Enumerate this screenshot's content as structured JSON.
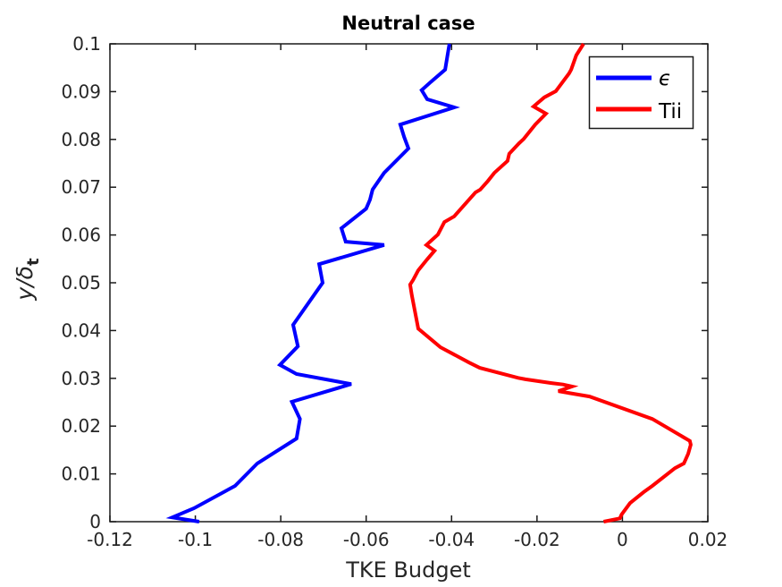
{
  "chart_data": {
    "type": "line",
    "title": "Neutral case",
    "xlabel": "TKE Budget",
    "ylabel": "y/δ_t",
    "xlim": [
      -0.12,
      0.02
    ],
    "ylim": [
      0,
      0.1
    ],
    "xticks": [
      -0.12,
      -0.1,
      -0.08,
      -0.06,
      -0.04,
      -0.02,
      0,
      0.02
    ],
    "xtick_labels": [
      "-0.12",
      "-0.1",
      "-0.08",
      "-0.06",
      "-0.04",
      "-0.02",
      "0",
      "0.02"
    ],
    "yticks": [
      0,
      0.01,
      0.02,
      0.03,
      0.04,
      0.05,
      0.06,
      0.07,
      0.08,
      0.09,
      0.1
    ],
    "ytick_labels": [
      "0",
      "0.01",
      "0.02",
      "0.03",
      "0.04",
      "0.05",
      "0.06",
      "0.07",
      "0.08",
      "0.09",
      "0.1"
    ],
    "grid": false,
    "legend_position": "inside-top-right",
    "series": [
      {
        "id": "epsilon",
        "name": "ϵ",
        "color": "#0000ff",
        "points": [
          [
            -0.0405,
            0.1
          ],
          [
            -0.0409,
            0.0979
          ],
          [
            -0.0415,
            0.0946
          ],
          [
            -0.0449,
            0.092
          ],
          [
            -0.047,
            0.0903
          ],
          [
            -0.0457,
            0.0884
          ],
          [
            -0.0394,
            0.0867
          ],
          [
            -0.052,
            0.0831
          ],
          [
            -0.0511,
            0.0805
          ],
          [
            -0.0501,
            0.0781
          ],
          [
            -0.0558,
            0.073
          ],
          [
            -0.0585,
            0.0695
          ],
          [
            -0.0591,
            0.0674
          ],
          [
            -0.06,
            0.0655
          ],
          [
            -0.0658,
            0.0614
          ],
          [
            -0.0648,
            0.0586
          ],
          [
            -0.0558,
            0.0579
          ],
          [
            -0.071,
            0.0539
          ],
          [
            -0.0702,
            0.05
          ],
          [
            -0.0771,
            0.0412
          ],
          [
            -0.076,
            0.0367
          ],
          [
            -0.0802,
            0.0328
          ],
          [
            -0.0763,
            0.0309
          ],
          [
            -0.0635,
            0.0288
          ],
          [
            -0.0774,
            0.0251
          ],
          [
            -0.0755,
            0.0215
          ],
          [
            -0.0763,
            0.0174
          ],
          [
            -0.0855,
            0.0122
          ],
          [
            -0.0907,
            0.0075
          ],
          [
            -0.1003,
            0.0028
          ],
          [
            -0.1054,
            0.0009
          ],
          [
            -0.0991,
            0.0
          ]
        ]
      },
      {
        "id": "tii",
        "name": "Tii",
        "color": "#ff0000",
        "points": [
          [
            -0.0091,
            0.1
          ],
          [
            -0.0108,
            0.0976
          ],
          [
            -0.012,
            0.0946
          ],
          [
            -0.0125,
            0.0938
          ],
          [
            -0.0156,
            0.0901
          ],
          [
            -0.0183,
            0.0888
          ],
          [
            -0.0208,
            0.0869
          ],
          [
            -0.0179,
            0.0854
          ],
          [
            -0.0204,
            0.0831
          ],
          [
            -0.0231,
            0.0801
          ],
          [
            -0.0242,
            0.0792
          ],
          [
            -0.0265,
            0.077
          ],
          [
            -0.0269,
            0.0755
          ],
          [
            -0.03,
            0.073
          ],
          [
            -0.0315,
            0.0713
          ],
          [
            -0.0333,
            0.0695
          ],
          [
            -0.0344,
            0.0689
          ],
          [
            -0.0394,
            0.0639
          ],
          [
            -0.0417,
            0.0627
          ],
          [
            -0.0432,
            0.0601
          ],
          [
            -0.0459,
            0.0579
          ],
          [
            -0.044,
            0.0567
          ],
          [
            -0.0457,
            0.0549
          ],
          [
            -0.0478,
            0.0526
          ],
          [
            -0.049,
            0.0506
          ],
          [
            -0.0497,
            0.0496
          ],
          [
            -0.0493,
            0.0474
          ],
          [
            -0.0478,
            0.0404
          ],
          [
            -0.0426,
            0.0365
          ],
          [
            -0.0359,
            0.0333
          ],
          [
            -0.0334,
            0.0322
          ],
          [
            -0.0244,
            0.0301
          ],
          [
            -0.0227,
            0.0298
          ],
          [
            -0.0166,
            0.029
          ],
          [
            -0.0139,
            0.0287
          ],
          [
            -0.0118,
            0.0283
          ],
          [
            -0.015,
            0.0273
          ],
          [
            -0.0077,
            0.0262
          ],
          [
            0.007,
            0.0215
          ],
          [
            0.0158,
            0.0169
          ],
          [
            0.016,
            0.0161
          ],
          [
            0.0154,
            0.0142
          ],
          [
            0.0144,
            0.0122
          ],
          [
            0.0123,
            0.0112
          ],
          [
            0.007,
            0.0075
          ],
          [
            0.005,
            0.0062
          ],
          [
            0.0018,
            0.0039
          ],
          [
            -0.0002,
            0.0015
          ],
          [
            -0.0006,
            0.0007
          ],
          [
            -0.0044,
            0.0
          ]
        ]
      }
    ]
  },
  "ylabel_parts": {
    "main": "y/δ",
    "sub": "t"
  },
  "legend": {
    "entries": [
      {
        "label": "ϵ",
        "color": "#0000ff"
      },
      {
        "label": "Tii",
        "color": "#ff0000"
      }
    ]
  },
  "colors": {
    "axis": "#1a1a1a",
    "background": "#ffffff",
    "epsilon_line": "#0000ff",
    "tii_line": "#ff0000"
  }
}
